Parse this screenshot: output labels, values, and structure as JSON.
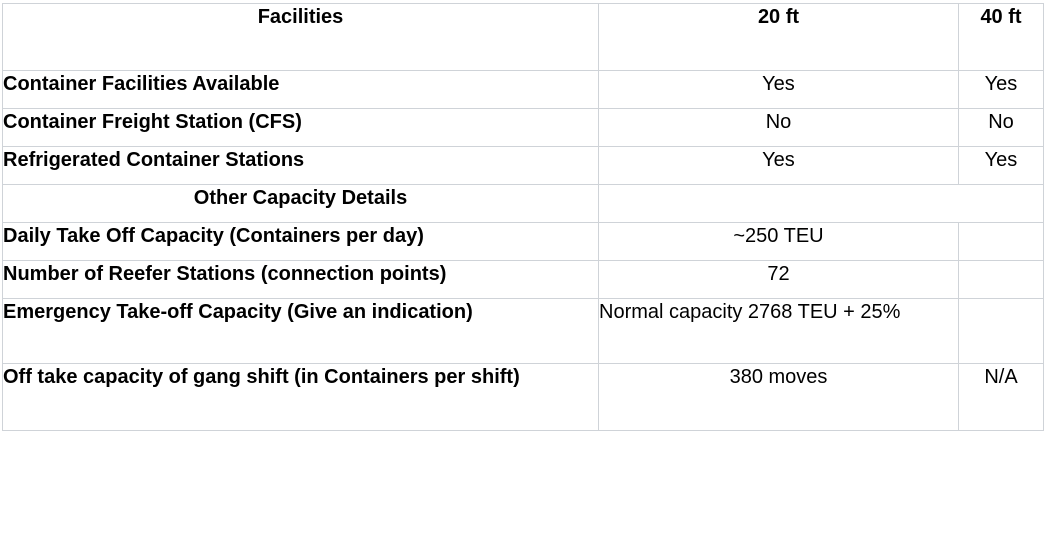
{
  "header": {
    "facilities": "Facilities",
    "col_20ft": "20 ft",
    "col_40ft": "40 ft"
  },
  "rows": [
    {
      "label": "Container Facilities Available",
      "v20": "Yes",
      "v40": "Yes"
    },
    {
      "label": "Container Freight Station (CFS)",
      "v20": "No",
      "v40": "No"
    },
    {
      "label": "Refrigerated Container Stations",
      "v20": "Yes",
      "v40": "Yes"
    }
  ],
  "other": {
    "title": "Other Capacity Details",
    "items": [
      {
        "label": "Daily Take Off Capacity (Containers per day)",
        "value": "~250 TEU"
      },
      {
        "label": "Number of Reefer Stations (connection points)",
        "value": "72"
      },
      {
        "label": "Emergency Take-off Capacity (Give an indication)",
        "value": "Normal capacity 2768 TEU + 25%"
      }
    ],
    "last": {
      "label": "Off take capacity of gang shift (in Containers per shift)",
      "value": "380 moves",
      "v40": "N/A"
    }
  }
}
